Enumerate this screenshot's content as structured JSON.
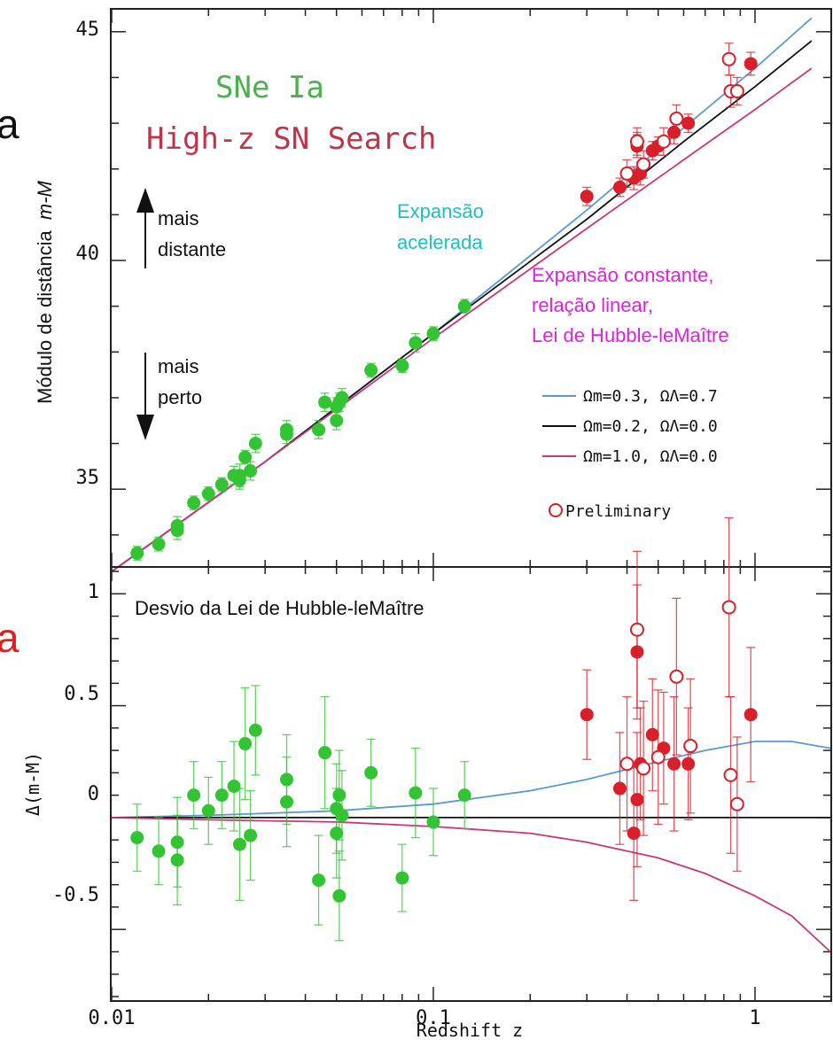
{
  "colors": {
    "green": "#33c433",
    "red": "#d81f2a",
    "blue": "#5a9ad0",
    "black": "#111111",
    "pink": "#c8377a",
    "cyan": "#1ebfc4",
    "magenta": "#e020e0",
    "title_green": "#4caf50",
    "title_red": "#c0344a"
  },
  "chart_data": [
    {
      "type": "scatter",
      "panel": "top",
      "title_lines": [
        "SNe Ia",
        "High-z SN Search"
      ],
      "ylabel_prefix": "Módulo de distância",
      "ylabel_italic": "m-M",
      "xscale": "log",
      "xlim": [
        0.01,
        1.8
      ],
      "ylim": [
        33.3,
        45.5
      ],
      "yticks": [
        35,
        40,
        45
      ],
      "ytick_labels": [
        "35",
        "40",
        "45"
      ],
      "annotations": {
        "accel": [
          "Expansão",
          "acelerada"
        ],
        "const": [
          "Expansão constante,",
          "relação linear,",
          "Lei de Hubble-leMaître"
        ],
        "far": [
          "mais",
          "distante"
        ],
        "near": [
          "mais",
          "perto"
        ]
      },
      "legend": [
        {
          "label": "Ωm=0.3, ΩΛ=0.7",
          "color": "#5a9ad0"
        },
        {
          "label": "Ωm=0.2, ΩΛ=0.0",
          "color": "#111111"
        },
        {
          "label": "Ωm=1.0, ΩΛ=0.0",
          "color": "#c8377a"
        }
      ],
      "legend_marker_label": "Preliminary",
      "curves": [
        {
          "name": "Ωm=0.3, ΩΛ=0.7",
          "x": [
            0.01,
            0.03,
            0.1,
            0.3,
            0.6,
            1.0,
            1.5
          ],
          "y": [
            33.2,
            35.6,
            38.4,
            41.1,
            42.9,
            44.2,
            45.3
          ]
        },
        {
          "name": "Ωm=0.2, ΩΛ=0.0",
          "x": [
            0.01,
            0.03,
            0.1,
            0.3,
            0.6,
            1.0,
            1.5
          ],
          "y": [
            33.2,
            35.6,
            38.4,
            40.9,
            42.6,
            43.8,
            44.8
          ]
        },
        {
          "name": "Ωm=1.0, ΩΛ=0.0",
          "x": [
            0.01,
            0.03,
            0.1,
            0.3,
            0.6,
            1.0,
            1.5
          ],
          "y": [
            33.2,
            35.6,
            38.3,
            40.7,
            42.2,
            43.3,
            44.2
          ]
        }
      ],
      "series": [
        {
          "name": "SNe Ia",
          "color": "#33c433",
          "x": [
            0.012,
            0.014,
            0.016,
            0.016,
            0.018,
            0.02,
            0.022,
            0.024,
            0.025,
            0.025,
            0.026,
            0.027,
            0.028,
            0.035,
            0.035,
            0.044,
            0.046,
            0.05,
            0.05,
            0.051,
            0.052,
            0.064,
            0.08,
            0.088,
            0.1,
            0.125
          ],
          "y": [
            33.6,
            33.8,
            34.1,
            34.2,
            34.7,
            34.9,
            35.1,
            35.3,
            35.3,
            35.2,
            35.7,
            35.4,
            36.0,
            36.3,
            36.2,
            36.3,
            36.9,
            36.8,
            36.5,
            36.9,
            37.0,
            37.6,
            37.7,
            38.2,
            38.4,
            39.0
          ],
          "err": [
            0.15,
            0.15,
            0.2,
            0.2,
            0.15,
            0.15,
            0.15,
            0.2,
            0.25,
            0.2,
            0.15,
            0.2,
            0.2,
            0.2,
            0.2,
            0.2,
            0.2,
            0.2,
            0.2,
            0.2,
            0.2,
            0.15,
            0.15,
            0.2,
            0.15,
            0.15
          ]
        },
        {
          "name": "High-z SN Search",
          "color": "#d81f2a",
          "x": [
            0.3,
            0.38,
            0.42,
            0.43,
            0.43,
            0.44,
            0.48,
            0.5,
            0.56,
            0.62,
            0.97
          ],
          "y": [
            41.4,
            41.6,
            41.8,
            42.5,
            42.6,
            41.9,
            42.4,
            42.5,
            42.8,
            43.0,
            44.3
          ],
          "err": [
            0.2,
            0.2,
            0.25,
            0.25,
            0.2,
            0.25,
            0.2,
            0.2,
            0.25,
            0.2,
            0.25
          ]
        },
        {
          "name": "Preliminary",
          "color": "#d81f2a",
          "open": true,
          "x": [
            0.4,
            0.43,
            0.45,
            0.52,
            0.57,
            0.83,
            0.84,
            0.88
          ],
          "y": [
            41.9,
            42.6,
            42.1,
            42.6,
            43.1,
            44.4,
            43.7,
            43.7
          ],
          "err": [
            0.3,
            0.3,
            0.3,
            0.3,
            0.3,
            0.35,
            0.35,
            0.3
          ]
        }
      ]
    },
    {
      "type": "scatter",
      "panel": "bottom",
      "xlabel": "Redshift z",
      "ylabel": "Δ(m-M)",
      "xscale": "log",
      "xlim": [
        0.01,
        1.8
      ],
      "ylim": [
        -0.82,
        1.12
      ],
      "yticks": [
        -0.5,
        0,
        0.5,
        1
      ],
      "ytick_labels": [
        "-0.5",
        "0",
        "0.5",
        "1"
      ],
      "xticks": [
        0.01,
        0.1,
        1
      ],
      "xtick_labels": [
        "0.01",
        "0.1",
        "1"
      ],
      "annotation": "Desvio da Lei de Hubble-leMaître",
      "curves": [
        {
          "name": "Ωm=0.3, ΩΛ=0.7",
          "x": [
            0.01,
            0.02,
            0.05,
            0.1,
            0.2,
            0.3,
            0.5,
            0.7,
            1.0,
            1.3,
            1.8
          ],
          "y": [
            0.0,
            0.01,
            0.03,
            0.06,
            0.12,
            0.17,
            0.25,
            0.3,
            0.34,
            0.34,
            0.31
          ]
        },
        {
          "name": "Ωm=0.2, ΩΛ=0.0",
          "x": [
            0.01,
            1.8
          ],
          "y": [
            0.0,
            0.0
          ]
        },
        {
          "name": "Ωm=1.0, ΩΛ=0.0",
          "x": [
            0.01,
            0.02,
            0.05,
            0.1,
            0.2,
            0.3,
            0.5,
            0.7,
            1.0,
            1.3,
            1.8
          ],
          "y": [
            0.0,
            -0.01,
            -0.02,
            -0.04,
            -0.07,
            -0.11,
            -0.18,
            -0.25,
            -0.35,
            -0.44,
            -0.6
          ]
        }
      ],
      "series": [
        {
          "name": "SNe Ia",
          "color": "#33c433",
          "x": [
            0.012,
            0.014,
            0.016,
            0.016,
            0.018,
            0.02,
            0.022,
            0.024,
            0.025,
            0.026,
            0.027,
            0.028,
            0.035,
            0.035,
            0.044,
            0.046,
            0.05,
            0.05,
            0.051,
            0.051,
            0.052,
            0.064,
            0.08,
            0.088,
            0.1,
            0.125
          ],
          "y": [
            -0.09,
            -0.15,
            -0.11,
            -0.19,
            0.1,
            0.03,
            0.1,
            0.14,
            -0.12,
            0.33,
            -0.08,
            0.39,
            0.17,
            0.07,
            -0.28,
            0.29,
            0.04,
            -0.07,
            -0.35,
            0.1,
            0.01,
            0.2,
            -0.27,
            0.11,
            -0.02,
            0.1
          ],
          "err": [
            0.15,
            0.15,
            0.2,
            0.2,
            0.15,
            0.15,
            0.15,
            0.2,
            0.25,
            0.25,
            0.2,
            0.2,
            0.2,
            0.2,
            0.2,
            0.25,
            0.2,
            0.2,
            0.2,
            0.2,
            0.2,
            0.15,
            0.15,
            0.2,
            0.15,
            0.15
          ],
          "xerr": [
            0.001,
            0.001,
            0.001,
            0.001,
            0.001,
            0.001,
            0.001,
            0.001,
            0.001,
            0.001,
            0.001,
            0.001,
            0.001,
            0.001,
            0.001,
            0.001,
            0.001,
            0.001,
            0.001,
            0.001,
            0.001,
            0.001,
            0.001,
            0.001,
            0.001,
            0.001
          ]
        },
        {
          "name": "High-z SN Search",
          "color": "#d81f2a",
          "x": [
            0.3,
            0.38,
            0.42,
            0.43,
            0.43,
            0.44,
            0.48,
            0.52,
            0.56,
            0.62,
            0.97
          ],
          "y": [
            0.46,
            0.13,
            -0.07,
            0.74,
            0.08,
            0.24,
            0.37,
            0.31,
            0.24,
            0.24,
            0.46
          ],
          "err": [
            0.2,
            0.25,
            0.3,
            0.3,
            0.3,
            0.25,
            0.25,
            0.25,
            0.3,
            0.25,
            0.3
          ]
        },
        {
          "name": "Preliminary",
          "color": "#d81f2a",
          "open": true,
          "x": [
            0.4,
            0.43,
            0.45,
            0.5,
            0.57,
            0.63,
            0.83,
            0.84,
            0.88
          ],
          "y": [
            0.24,
            0.84,
            0.22,
            0.27,
            0.63,
            0.32,
            0.94,
            0.19,
            0.06
          ],
          "err": [
            0.3,
            0.35,
            0.3,
            0.3,
            0.35,
            0.3,
            0.4,
            0.35,
            0.3
          ]
        }
      ]
    }
  ],
  "side_letters": [
    {
      "text": "a",
      "color": "#111111"
    },
    {
      "text": "a",
      "color": "#e02020"
    }
  ]
}
